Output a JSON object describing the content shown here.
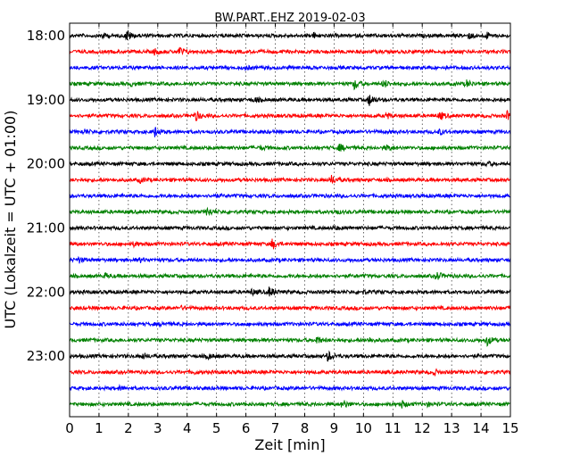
{
  "chart_data": {
    "type": "line",
    "title": "BW.PART..EHZ 2019-02-03",
    "xlabel": "Zeit  [min]",
    "ylabel": "UTC (Lokalzeit = UTC + 01:00)",
    "xlim": [
      0,
      15
    ],
    "xticks": [
      "0",
      "1",
      "2",
      "3",
      "4",
      "5",
      "6",
      "7",
      "8",
      "9",
      "10",
      "11",
      "12",
      "13",
      "14",
      "15"
    ],
    "yticks": [
      {
        "label": "18:00",
        "trace": 0
      },
      {
        "label": "19:00",
        "trace": 4
      },
      {
        "label": "20:00",
        "trace": 8
      },
      {
        "label": "21:00",
        "trace": 12
      },
      {
        "label": "22:00",
        "trace": 16
      },
      {
        "label": "23:00",
        "trace": 20
      }
    ],
    "grid": "vertical dotted",
    "trace_count": 24,
    "trace_interval_min": 15,
    "colors": [
      "#000000",
      "#ff0000",
      "#0000ff",
      "#008000"
    ],
    "events": [
      [
        0,
        1.1,
        0.5
      ],
      [
        0,
        1.95,
        1.0
      ],
      [
        0,
        8.3,
        0.4
      ],
      [
        0,
        13.6,
        0.5
      ],
      [
        0,
        14.2,
        0.5
      ],
      [
        1,
        2.9,
        0.5
      ],
      [
        1,
        3.75,
        0.8
      ],
      [
        2,
        6.0,
        0.3
      ],
      [
        3,
        2.1,
        0.3
      ],
      [
        3,
        9.7,
        1.0
      ],
      [
        3,
        10.7,
        0.7
      ],
      [
        3,
        13.5,
        0.6
      ],
      [
        4,
        10.2,
        1.1
      ],
      [
        4,
        6.3,
        0.4
      ],
      [
        5,
        4.3,
        0.9
      ],
      [
        5,
        10.8,
        0.5
      ],
      [
        5,
        12.6,
        0.7
      ],
      [
        5,
        14.9,
        0.8
      ],
      [
        6,
        0.5,
        0.4
      ],
      [
        6,
        2.9,
        0.8
      ],
      [
        6,
        12.6,
        0.4
      ],
      [
        7,
        9.2,
        0.6
      ],
      [
        7,
        10.8,
        0.5
      ],
      [
        7,
        6.5,
        0.3
      ],
      [
        8,
        14.2,
        0.4
      ],
      [
        9,
        8.9,
        0.8
      ],
      [
        9,
        2.4,
        0.4
      ],
      [
        10,
        4.9,
        0.3
      ],
      [
        11,
        4.7,
        0.8
      ],
      [
        11,
        9.0,
        0.4
      ],
      [
        12,
        9.0,
        0.3
      ],
      [
        13,
        6.9,
        0.9
      ],
      [
        13,
        2.2,
        0.4
      ],
      [
        14,
        0.3,
        0.5
      ],
      [
        14,
        2.4,
        0.3
      ],
      [
        15,
        12.5,
        0.8
      ],
      [
        15,
        1.2,
        0.4
      ],
      [
        16,
        6.8,
        0.9
      ],
      [
        16,
        6.2,
        0.5
      ],
      [
        16,
        10.0,
        0.3
      ],
      [
        17,
        3.8,
        0.2
      ],
      [
        18,
        3.1,
        0.3
      ],
      [
        19,
        8.4,
        0.7
      ],
      [
        19,
        14.2,
        0.9
      ],
      [
        19,
        10.2,
        0.4
      ],
      [
        20,
        8.8,
        0.9
      ],
      [
        20,
        2.5,
        0.5
      ],
      [
        20,
        4.7,
        0.5
      ],
      [
        21,
        4.2,
        0.3
      ],
      [
        21,
        12.4,
        0.5
      ],
      [
        22,
        1.7,
        0.3
      ],
      [
        23,
        9.3,
        0.8
      ],
      [
        23,
        11.3,
        0.6
      ],
      [
        23,
        12.2,
        0.3
      ]
    ]
  }
}
